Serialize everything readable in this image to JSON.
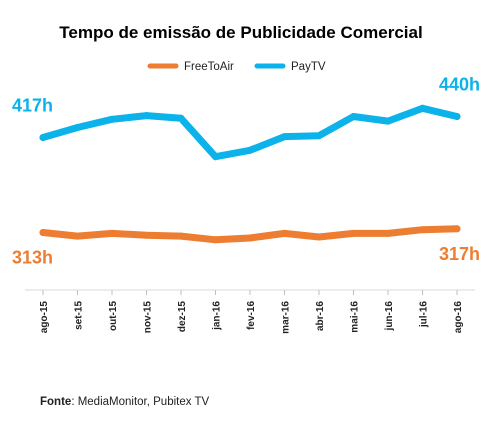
{
  "chart_data": {
    "type": "line",
    "title": "Tempo de emissão de Publicidade Comercial",
    "categories": [
      "ago-15",
      "set-15",
      "out-15",
      "nov-15",
      "dez-15",
      "jan-16",
      "fev-16",
      "mar-16",
      "abr-16",
      "mai-16",
      "jun-16",
      "jul-16",
      "ago-16"
    ],
    "series": [
      {
        "name": "FreeToAir",
        "color": "#ED7D31",
        "values": [
          313,
          309,
          312,
          310,
          309,
          305,
          307,
          312,
          308,
          312,
          312,
          316,
          317
        ]
      },
      {
        "name": "PayTV",
        "color": "#0BB3EA",
        "values": [
          417,
          428,
          437,
          441,
          438,
          396,
          403,
          418,
          419,
          440,
          435,
          449,
          440
        ]
      }
    ],
    "ylim": [
      250,
      480
    ],
    "grid": false,
    "legend": "top-center",
    "annotations": [
      {
        "series": "PayTV",
        "point": "start",
        "text": "417h",
        "color": "#0BB3EA"
      },
      {
        "series": "PayTV",
        "point": "end",
        "text": "440h",
        "color": "#0BB3EA"
      },
      {
        "series": "FreeToAir",
        "point": "start",
        "text": "313h",
        "color": "#ED7D31"
      },
      {
        "series": "FreeToAir",
        "point": "end",
        "text": "317h",
        "color": "#ED7D31"
      }
    ]
  },
  "source": {
    "label": "Fonte",
    "text": ": MediaMonitor, Pubitex TV"
  }
}
